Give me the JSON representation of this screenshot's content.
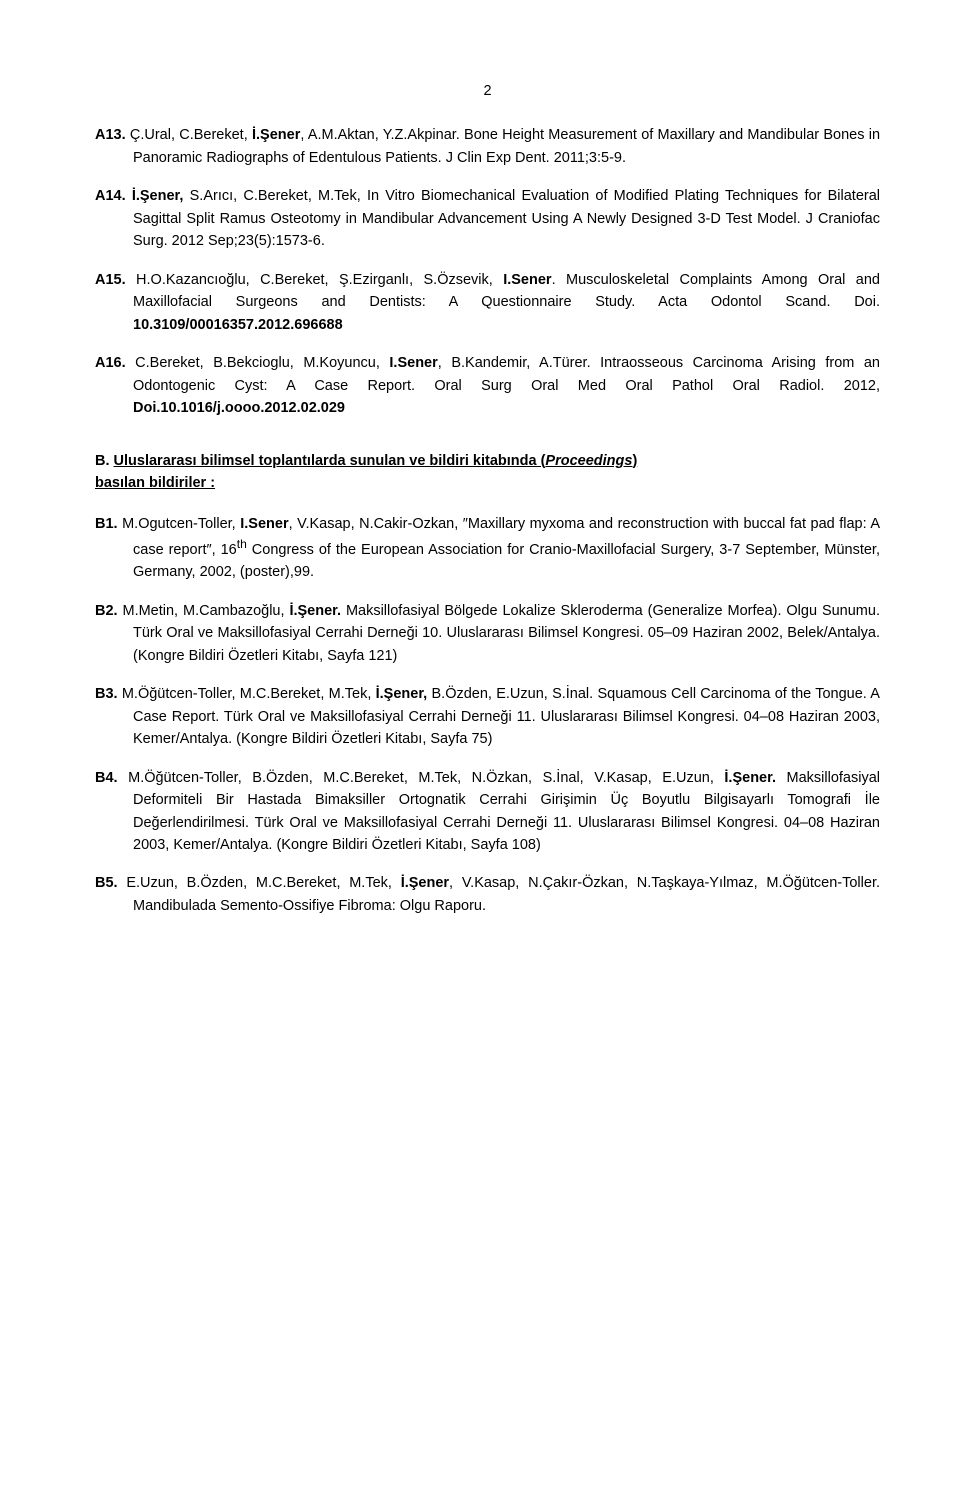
{
  "page_number": "2",
  "entries_top": [
    {
      "id": "A13.",
      "html": "<span class='b'>A13.</span> Ç.Ural, C.Bereket, <span class='b'>İ.Şener</span>, A.M.Aktan, Y.Z.Akpinar. Bone Height Measurement of Maxillary and Mandibular Bones in Panoramic Radiographs of Edentulous Patients. J Clin Exp Dent. 2011;3:5-9."
    },
    {
      "id": "A14.",
      "html": "<span class='b'>A14. İ.Şener,</span> S.Arıcı, C.Bereket, M.Tek, In Vitro Biomechanical Evaluation of Modified Plating Techniques for Bilateral Sagittal Split Ramus Osteotomy in Mandibular Advancement Using A Newly Designed 3-D Test Model. J Craniofac Surg. 2012 Sep;23(5):1573-6."
    },
    {
      "id": "A15.",
      "html": "<span class='b'>A15.</span> H.O.Kazancıoğlu, C.Bereket, Ş.Ezirganlı, S.Özsevik, <span class='b'>I.Sener</span>. Musculoskeletal Complaints Among Oral and Maxillofacial Surgeons and Dentists: A Questionnaire Study. Acta Odontol Scand. Doi. <span class='b'>10.3109/00016357.2012.696688</span>"
    },
    {
      "id": "A16.",
      "html": "<span class='b'>A16.</span> C.Bereket, B.Bekcioglu, M.Koyuncu, <span class='b'>I.Sener</span>, B.Kandemir, A.Türer. Intraosseous Carcinoma Arising from an Odontogenic Cyst: A Case Report. Oral Surg Oral Med Oral Pathol Oral Radiol. 2012, <span class='b'>Doi.10.1016/j.oooo.2012.02.029</span>"
    }
  ],
  "section_heading": "<span class='b'>B. <span class='ul'>Uluslararası bilimsel toplantılarda sunulan ve bildiri kitabında (<span class='i'>Proceedings</span>)</span></span><br><span class='b ul'>basılan bildiriler :</span>",
  "entries_bottom": [
    {
      "id": "B1.",
      "html": "<span class='b'>B1.</span> M.Ogutcen-Toller, <span class='b'>I.Sener</span>, V.Kasap, N.Cakir-Ozkan, &#8243;Maxillary myxoma and reconstruction with buccal fat pad flap: A case report&#8243;, 16<sup>th</sup> Congress of the European Association for Cranio-Maxillofacial Surgery, 3-7 September, Münster, Germany, 2002, (poster),99."
    },
    {
      "id": "B2.",
      "html": "<span class='b'>B2.</span> M.Metin, M.Cambazoğlu, <span class='b'>İ.Şener.</span> Maksillofasiyal Bölgede Lokalize Skleroderma (Generalize Morfea). Olgu Sunumu. Türk Oral ve Maksillofasiyal Cerrahi Derneği 10. Uluslararası Bilimsel Kongresi. 05–09 Haziran 2002, Belek/Antalya. (Kongre Bildiri Özetleri Kitabı, Sayfa 121)"
    },
    {
      "id": "B3.",
      "html": "<span class='b'>B3.</span> M.Öğütcen-Toller, M.C.Bereket, M.Tek, <span class='b'>İ.Şener,</span> B.Özden, E.Uzun, S.İnal. Squamous Cell Carcinoma of the Tongue. A Case Report. Türk Oral ve Maksillofasiyal Cerrahi Derneği 11. Uluslararası Bilimsel Kongresi. 04–08 Haziran 2003, Kemer/Antalya. (Kongre Bildiri Özetleri Kitabı, Sayfa 75)"
    },
    {
      "id": "B4.",
      "html": "<span class='b'>B4.</span> M.Öğütcen-Toller, B.Özden, M.C.Bereket, M.Tek, N.Özkan, S.İnal, V.Kasap, E.Uzun, <span class='b'>İ.Şener.</span> Maksillofasiyal Deformiteli Bir Hastada Bimaksiller Ortognatik Cerrahi Girişimin Üç Boyutlu Bilgisayarlı Tomografi İle Değerlendirilmesi. Türk Oral ve Maksillofasiyal Cerrahi Derneği 11. Uluslararası Bilimsel Kongresi. 04–08 Haziran 2003, Kemer/Antalya. (Kongre Bildiri Özetleri Kitabı, Sayfa 108)"
    },
    {
      "id": "B5.",
      "html": "<span class='b'>B5.</span> E.Uzun, B.Özden, M.C.Bereket, M.Tek, <span class='b'>İ.Şener</span>, V.Kasap, N.Çakır-Özkan, N.Taşkaya-Yılmaz, M.Öğütcen-Toller. Mandibulada Semento-Ossifiye Fibroma: Olgu Raporu."
    }
  ]
}
